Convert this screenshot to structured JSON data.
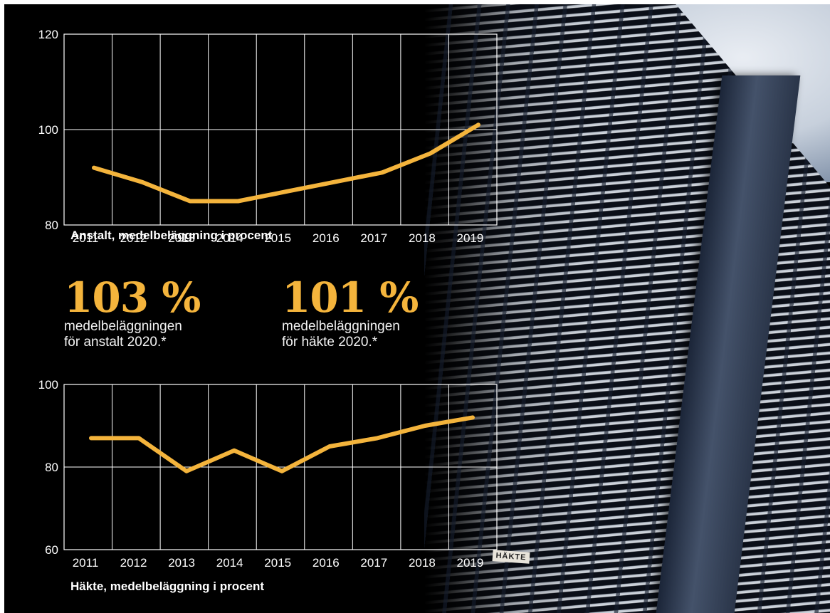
{
  "colors": {
    "accent": "#f4b43c",
    "background": "#000000",
    "grid": "#ffffff",
    "text": "#ffffff"
  },
  "stats": [
    {
      "value": "103 %",
      "description": "medelbeläggningen\nför anstalt 2020.*"
    },
    {
      "value": "101 %",
      "description": "medelbeläggningen\nför häkte 2020.*"
    }
  ],
  "photo": {
    "sign_text": "HÄKTE"
  },
  "chart_data": [
    {
      "type": "line",
      "title": "Anstalt, medelbeläggning i procent",
      "x": [
        "2011",
        "2012",
        "2013",
        "2014",
        "2015",
        "2016",
        "2017",
        "2018",
        "2019"
      ],
      "series": [
        {
          "values": [
            92,
            89,
            85,
            85,
            87,
            89,
            91,
            95,
            101
          ]
        }
      ],
      "yticks": [
        80,
        100,
        120
      ],
      "ylim": [
        80,
        120
      ],
      "grid": true,
      "legend": "none"
    },
    {
      "type": "line",
      "title": "Häkte, medelbeläggning i procent",
      "x": [
        "2011",
        "2012",
        "2013",
        "2014",
        "2015",
        "2016",
        "2017",
        "2018",
        "2019"
      ],
      "series": [
        {
          "values": [
            87,
            87,
            79,
            84,
            79,
            85,
            87,
            90,
            92
          ]
        }
      ],
      "yticks": [
        60,
        80,
        100
      ],
      "ylim": [
        60,
        100
      ],
      "grid": true,
      "legend": "none"
    }
  ]
}
